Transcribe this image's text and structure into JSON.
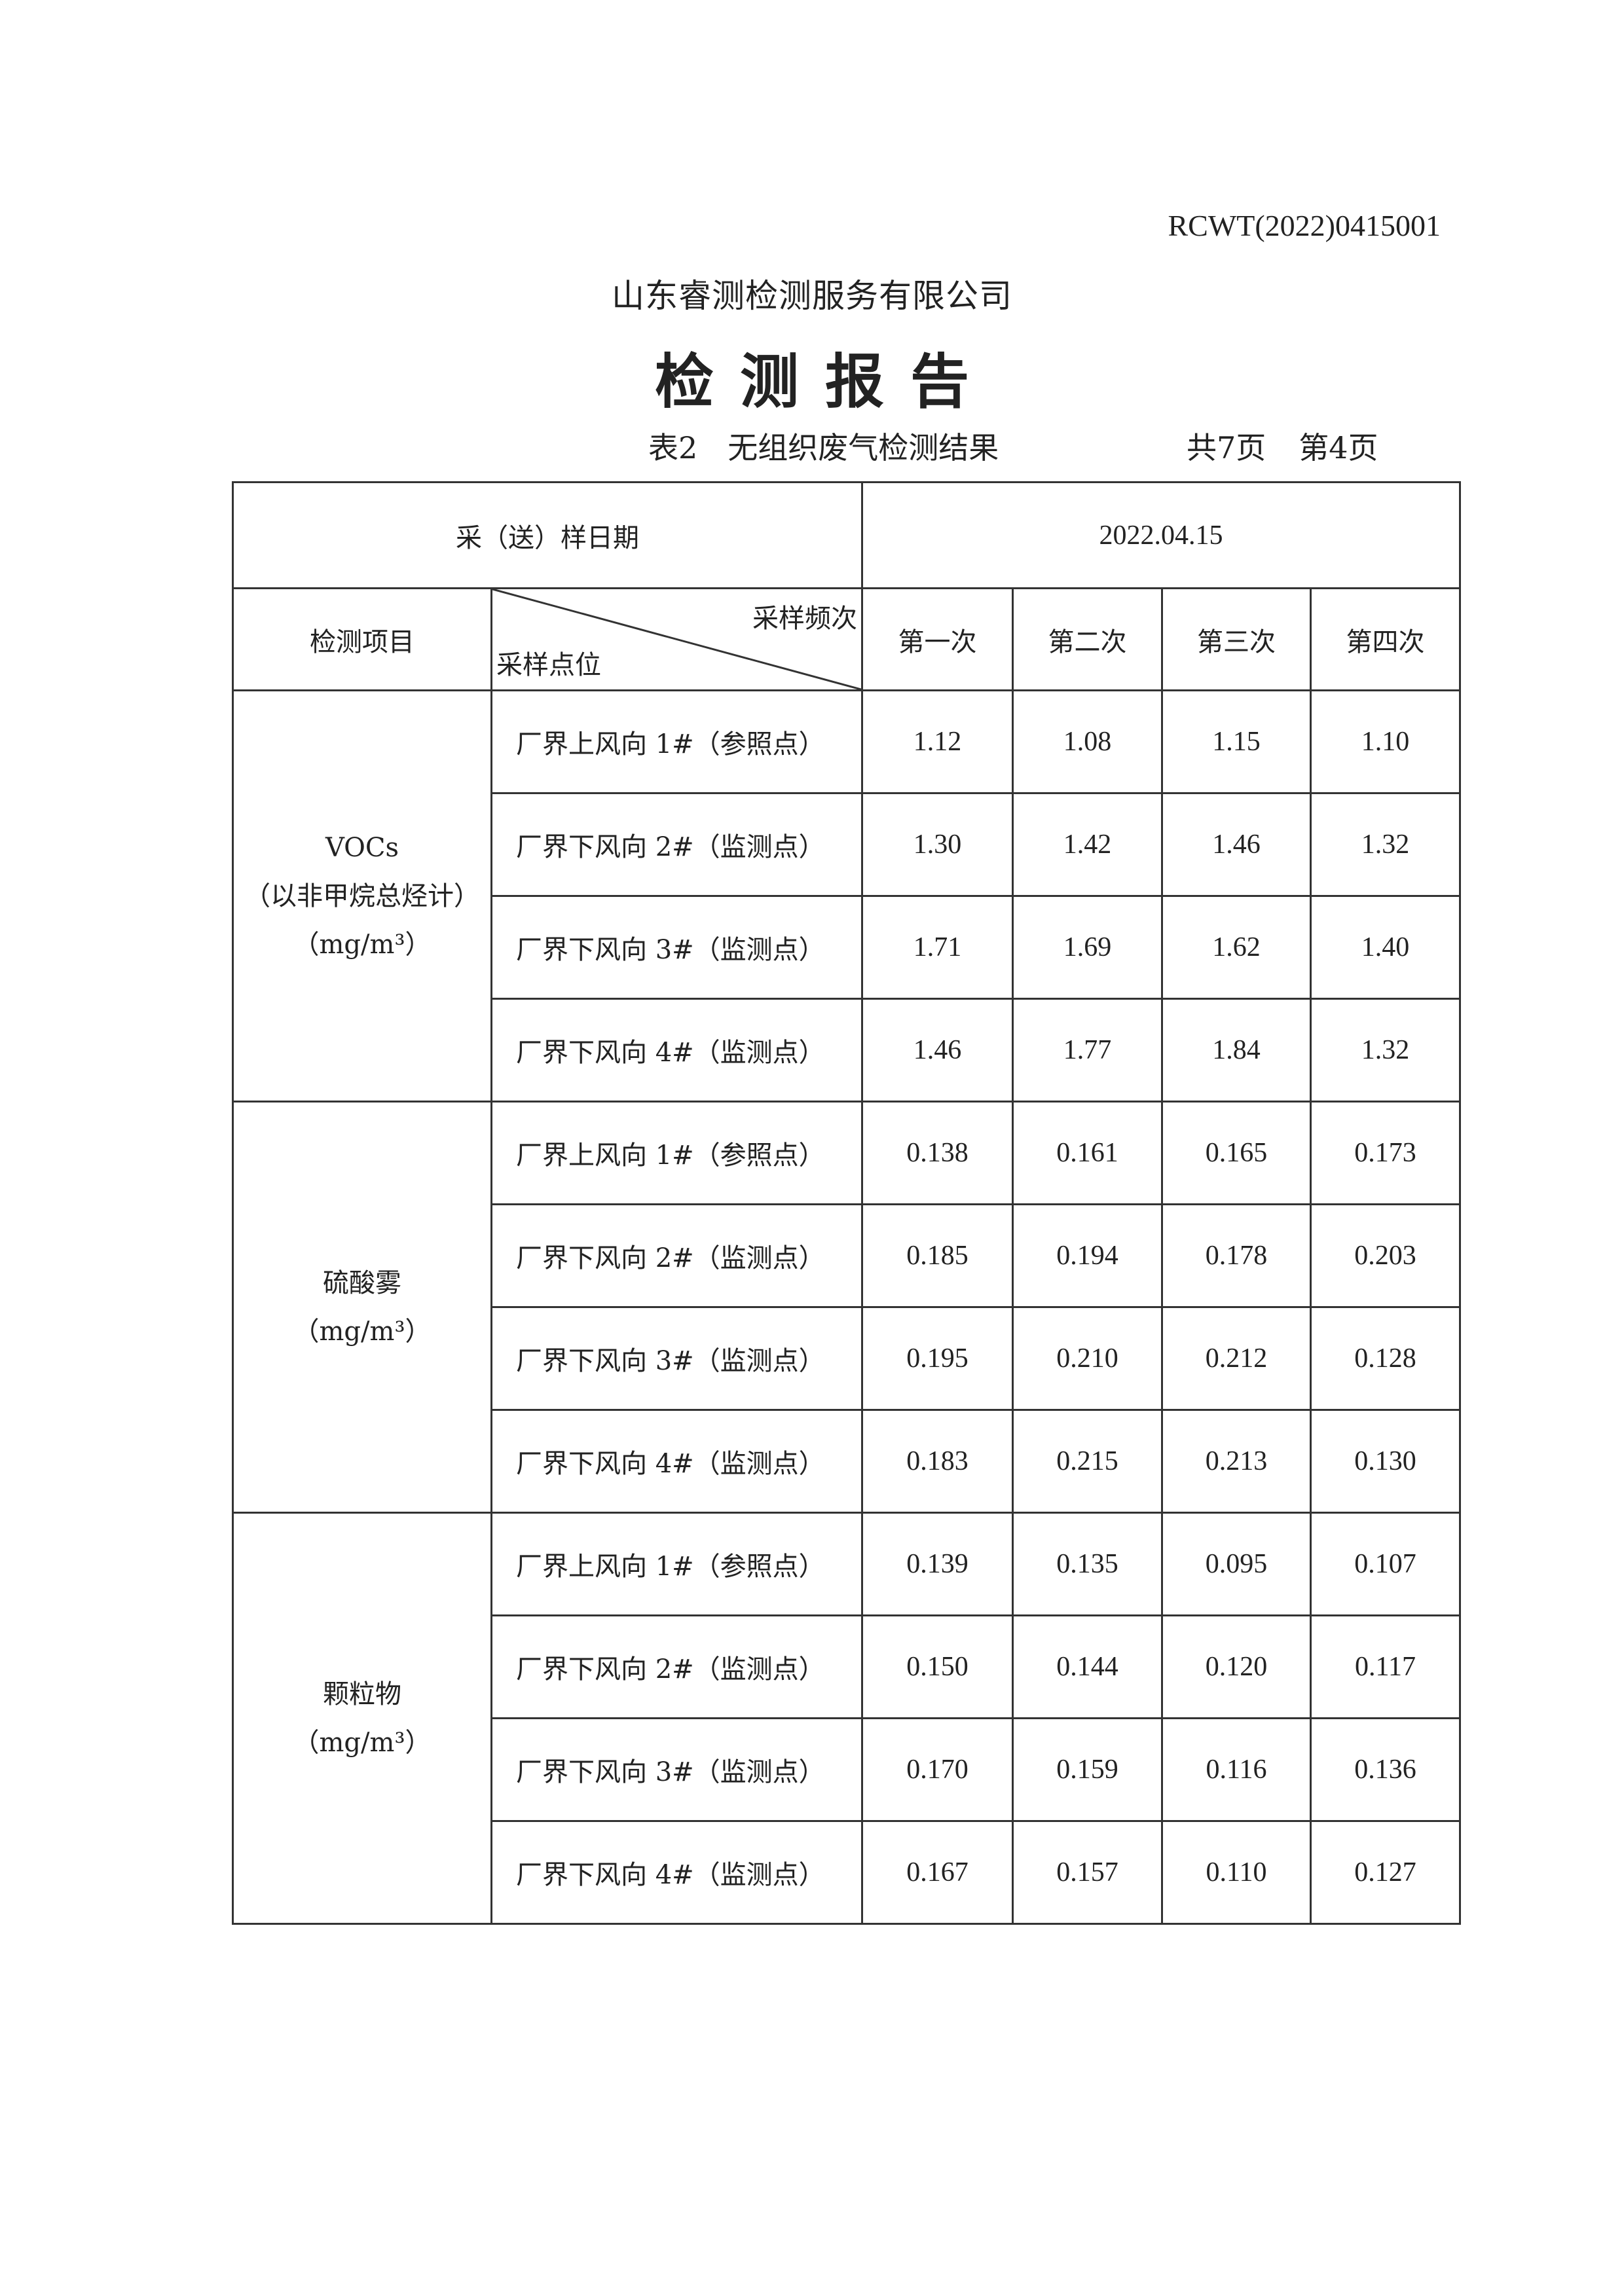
{
  "report_no": "RCWT(2022)0415001",
  "company": "山东睿测检测服务有限公司",
  "title": "检测报告",
  "table_caption": "表2　无组织废气检测结果",
  "total_pages": "共7页",
  "current_page": "第4页",
  "date_label": "采（送）样日期",
  "date_value": "2022.04.15",
  "header": {
    "item": "检测项目",
    "frequency": "采样频次",
    "point": "采样点位",
    "runs": [
      "第一次",
      "第二次",
      "第三次",
      "第四次"
    ]
  },
  "groups": [
    {
      "name": "VOCs",
      "note": "（以非甲烷总烃计）",
      "unit": "（mg/m³）",
      "rows": [
        {
          "point": "厂界上风向 1#（参照点）",
          "values": [
            "1.12",
            "1.08",
            "1.15",
            "1.10"
          ]
        },
        {
          "point": "厂界下风向 2#（监测点）",
          "values": [
            "1.30",
            "1.42",
            "1.46",
            "1.32"
          ]
        },
        {
          "point": "厂界下风向 3#（监测点）",
          "values": [
            "1.71",
            "1.69",
            "1.62",
            "1.40"
          ]
        },
        {
          "point": "厂界下风向 4#（监测点）",
          "values": [
            "1.46",
            "1.77",
            "1.84",
            "1.32"
          ]
        }
      ]
    },
    {
      "name": "硫酸雾",
      "unit": "（mg/m³）",
      "rows": [
        {
          "point": "厂界上风向 1#（参照点）",
          "values": [
            "0.138",
            "0.161",
            "0.165",
            "0.173"
          ]
        },
        {
          "point": "厂界下风向 2#（监测点）",
          "values": [
            "0.185",
            "0.194",
            "0.178",
            "0.203"
          ]
        },
        {
          "point": "厂界下风向 3#（监测点）",
          "values": [
            "0.195",
            "0.210",
            "0.212",
            "0.128"
          ]
        },
        {
          "point": "厂界下风向 4#（监测点）",
          "values": [
            "0.183",
            "0.215",
            "0.213",
            "0.130"
          ]
        }
      ]
    },
    {
      "name": "颗粒物",
      "unit": "（mg/m³）",
      "rows": [
        {
          "point": "厂界上风向 1#（参照点）",
          "values": [
            "0.139",
            "0.135",
            "0.095",
            "0.107"
          ]
        },
        {
          "point": "厂界下风向 2#（监测点）",
          "values": [
            "0.150",
            "0.144",
            "0.120",
            "0.117"
          ]
        },
        {
          "point": "厂界下风向 3#（监测点）",
          "values": [
            "0.170",
            "0.159",
            "0.116",
            "0.136"
          ]
        },
        {
          "point": "厂界下风向 4#（监测点）",
          "values": [
            "0.167",
            "0.157",
            "0.110",
            "0.127"
          ]
        }
      ]
    }
  ]
}
